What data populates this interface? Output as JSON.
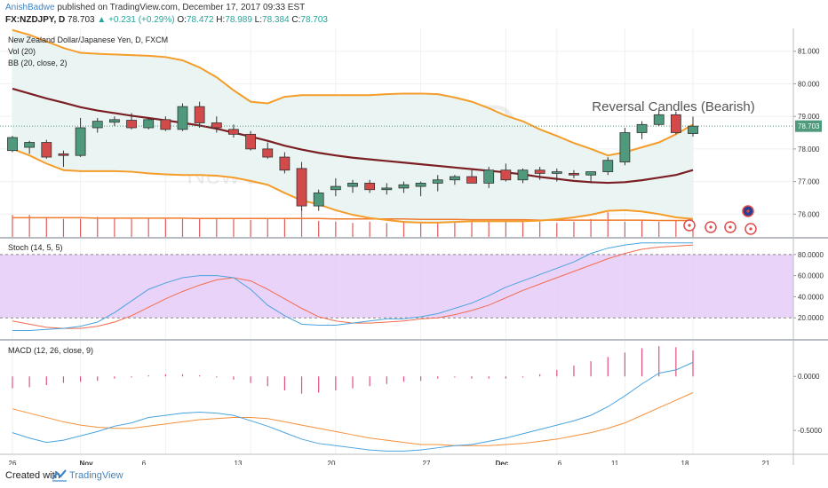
{
  "header": {
    "author": "AnishBadwe",
    "published": "published on TradingView.com, December 17, 2017 09:33 EST",
    "symbol": "FX:NZDJPY, D",
    "last": "78.703",
    "change": "▲ +0.231 (+0.29%)",
    "open_label": "O:",
    "open": "78.472",
    "high_label": "H:",
    "high": "78.989",
    "low_label": "L:",
    "low": "78.384",
    "close_label": "C:",
    "close": "78.703"
  },
  "footer": {
    "created_with": "Created with",
    "brand": "TradingView"
  },
  "colors": {
    "bull": "#4f9a7d",
    "bear": "#d24a4a",
    "bb_band": "#f59d2a",
    "bb_basis": "#7b1f24",
    "bb_fill": "#eaf5f3",
    "stoch_k": "#4aa3df",
    "stoch_d": "#f26c4f",
    "stoch_band": "#e5c8f7",
    "macd_line": "#4aa3df",
    "signal_line": "#f5903a",
    "hist": "#e2507a",
    "vol": "#e05a5a",
    "vol_ma": "#f07b2f"
  },
  "chart_data": [
    {
      "type": "candlestick",
      "title": "New Zealand Dollar/Japanese Yen, D, FXCM",
      "watermark_symbol": "NZDJPY, D",
      "watermark_name": "New Zealand Dollar/Japanese Yen",
      "annotation": "Reversal Candles (Bearish)",
      "indicators": [
        "Vol (20)",
        "BB (20, close, 2)"
      ],
      "ylim": [
        75.3,
        81.7
      ],
      "yticks": [
        "81.000",
        "80.000",
        "79.000",
        "78.000",
        "77.000",
        "76.000"
      ],
      "last_price_label": "78.703",
      "xticks": [
        "26",
        "Nov",
        "6",
        "13",
        "20",
        "27",
        "Dec",
        "6",
        "11",
        "18",
        "21"
      ],
      "candles": [
        {
          "o": 77.95,
          "h": 78.4,
          "l": 77.9,
          "c": 78.35
        },
        {
          "o": 78.05,
          "h": 78.25,
          "l": 77.85,
          "c": 78.2
        },
        {
          "o": 78.2,
          "h": 78.28,
          "l": 77.7,
          "c": 77.75
        },
        {
          "o": 77.85,
          "h": 77.95,
          "l": 77.45,
          "c": 77.8
        },
        {
          "o": 77.8,
          "h": 78.95,
          "l": 77.75,
          "c": 78.65
        },
        {
          "o": 78.65,
          "h": 78.95,
          "l": 78.5,
          "c": 78.85
        },
        {
          "o": 78.82,
          "h": 79.0,
          "l": 78.7,
          "c": 78.9
        },
        {
          "o": 78.88,
          "h": 79.1,
          "l": 78.6,
          "c": 78.65
        },
        {
          "o": 78.65,
          "h": 78.95,
          "l": 78.6,
          "c": 78.9
        },
        {
          "o": 78.9,
          "h": 79.0,
          "l": 78.55,
          "c": 78.6
        },
        {
          "o": 78.6,
          "h": 79.4,
          "l": 78.55,
          "c": 79.3
        },
        {
          "o": 79.3,
          "h": 79.45,
          "l": 78.65,
          "c": 78.8
        },
        {
          "o": 78.8,
          "h": 79.0,
          "l": 78.5,
          "c": 78.65
        },
        {
          "o": 78.6,
          "h": 78.75,
          "l": 78.35,
          "c": 78.45
        },
        {
          "o": 78.45,
          "h": 78.55,
          "l": 77.95,
          "c": 78.0
        },
        {
          "o": 78.0,
          "h": 78.2,
          "l": 77.7,
          "c": 77.75
        },
        {
          "o": 77.75,
          "h": 77.9,
          "l": 77.25,
          "c": 77.35
        },
        {
          "o": 77.4,
          "h": 77.6,
          "l": 76.1,
          "c": 76.25
        },
        {
          "o": 76.25,
          "h": 76.75,
          "l": 76.1,
          "c": 76.65
        },
        {
          "o": 76.75,
          "h": 77.1,
          "l": 76.55,
          "c": 76.85
        },
        {
          "o": 76.85,
          "h": 77.05,
          "l": 76.65,
          "c": 76.95
        },
        {
          "o": 76.95,
          "h": 77.05,
          "l": 76.65,
          "c": 76.75
        },
        {
          "o": 76.75,
          "h": 76.95,
          "l": 76.6,
          "c": 76.8
        },
        {
          "o": 76.8,
          "h": 77.0,
          "l": 76.65,
          "c": 76.9
        },
        {
          "o": 76.85,
          "h": 77.0,
          "l": 76.55,
          "c": 76.95
        },
        {
          "o": 76.95,
          "h": 77.2,
          "l": 76.7,
          "c": 77.05
        },
        {
          "o": 77.05,
          "h": 77.2,
          "l": 76.9,
          "c": 77.15
        },
        {
          "o": 77.15,
          "h": 77.35,
          "l": 76.95,
          "c": 76.95
        },
        {
          "o": 76.95,
          "h": 77.45,
          "l": 76.8,
          "c": 77.35
        },
        {
          "o": 77.35,
          "h": 77.55,
          "l": 77.0,
          "c": 77.05
        },
        {
          "o": 77.05,
          "h": 77.4,
          "l": 76.95,
          "c": 77.35
        },
        {
          "o": 77.35,
          "h": 77.45,
          "l": 77.05,
          "c": 77.25
        },
        {
          "o": 77.25,
          "h": 77.4,
          "l": 77.0,
          "c": 77.3
        },
        {
          "o": 77.25,
          "h": 77.35,
          "l": 77.1,
          "c": 77.2
        },
        {
          "o": 77.2,
          "h": 77.3,
          "l": 76.95,
          "c": 77.3
        },
        {
          "o": 77.3,
          "h": 77.75,
          "l": 77.2,
          "c": 77.65
        },
        {
          "o": 77.6,
          "h": 78.65,
          "l": 77.5,
          "c": 78.5
        },
        {
          "o": 78.5,
          "h": 78.85,
          "l": 78.3,
          "c": 78.75
        },
        {
          "o": 78.75,
          "h": 79.2,
          "l": 78.7,
          "c": 79.05
        },
        {
          "o": 79.05,
          "h": 79.15,
          "l": 78.45,
          "c": 78.5
        },
        {
          "o": 78.47,
          "h": 78.99,
          "l": 78.38,
          "c": 78.7
        }
      ],
      "bb_upper": [
        81.65,
        81.5,
        81.3,
        81.1,
        80.95,
        80.92,
        80.9,
        80.88,
        80.86,
        80.82,
        80.72,
        80.5,
        80.2,
        79.8,
        79.45,
        79.4,
        79.6,
        79.65,
        79.65,
        79.65,
        79.65,
        79.65,
        79.68,
        79.7,
        79.7,
        79.68,
        79.58,
        79.45,
        79.25,
        79.02,
        78.85,
        78.6,
        78.4,
        78.18,
        78.0,
        77.8,
        77.9,
        78.05,
        78.2,
        78.45,
        78.75
      ],
      "bb_basis": [
        79.85,
        79.7,
        79.55,
        79.42,
        79.28,
        79.18,
        79.1,
        79.02,
        78.95,
        78.88,
        78.8,
        78.72,
        78.62,
        78.5,
        78.38,
        78.25,
        78.1,
        77.98,
        77.88,
        77.8,
        77.73,
        77.68,
        77.63,
        77.58,
        77.53,
        77.48,
        77.43,
        77.38,
        77.33,
        77.28,
        77.22,
        77.14,
        77.08,
        77.02,
        76.98,
        76.96,
        76.98,
        77.04,
        77.12,
        77.2,
        77.35
      ],
      "bb_lower": [
        78.0,
        77.8,
        77.55,
        77.35,
        77.32,
        77.32,
        77.32,
        77.3,
        77.25,
        77.22,
        77.2,
        77.2,
        77.18,
        77.12,
        77.02,
        76.9,
        76.65,
        76.42,
        76.3,
        76.12,
        75.98,
        75.88,
        75.82,
        75.76,
        75.74,
        75.74,
        75.76,
        75.78,
        75.78,
        75.78,
        75.78,
        75.8,
        75.84,
        75.9,
        75.98,
        76.1,
        76.12,
        76.08,
        76.0,
        75.9,
        75.85
      ],
      "volume": [
        0.55,
        0.55,
        0.5,
        0.45,
        0.45,
        0.5,
        0.48,
        0.45,
        0.48,
        0.45,
        0.45,
        0.45,
        0.48,
        0.45,
        0.42,
        0.45,
        0.48,
        0.72,
        0.4,
        0.38,
        0.35,
        0.38,
        0.35,
        0.4,
        0.38,
        0.35,
        0.38,
        0.4,
        0.38,
        0.4,
        0.38,
        0.38,
        0.35,
        0.38,
        0.45,
        0.62,
        0.38,
        0.4,
        0.38,
        0.4,
        0.3
      ],
      "volume_ma": [
        0.48,
        0.48,
        0.48,
        0.48,
        0.48,
        0.47,
        0.47,
        0.47,
        0.47,
        0.47,
        0.47,
        0.46,
        0.46,
        0.46,
        0.46,
        0.46,
        0.46,
        0.46,
        0.46,
        0.45,
        0.45,
        0.45,
        0.45,
        0.45,
        0.44,
        0.44,
        0.44,
        0.43,
        0.43,
        0.43,
        0.43,
        0.42,
        0.42,
        0.42,
        0.42,
        0.42,
        0.42,
        0.42,
        0.41,
        0.41,
        0.41
      ]
    },
    {
      "type": "line",
      "title": "Stoch (14, 5, 5)",
      "ylim": [
        0,
        95
      ],
      "yticks": [
        "80.0000",
        "60.0000",
        "40.0000",
        "20.0000"
      ],
      "band": [
        20,
        80
      ],
      "series": [
        {
          "name": "%K",
          "values": [
            8,
            8,
            9,
            10,
            12,
            16,
            25,
            36,
            47,
            53,
            58,
            60,
            60,
            58,
            47,
            32,
            22,
            14,
            13,
            13,
            15,
            17,
            19,
            19,
            21,
            24,
            29,
            34,
            41,
            49,
            55,
            61,
            67,
            73,
            81,
            86,
            89,
            91,
            91,
            91,
            91
          ]
        },
        {
          "name": "%D",
          "values": [
            17,
            14,
            11,
            10,
            10,
            12,
            16,
            22,
            30,
            38,
            45,
            51,
            56,
            58,
            55,
            47,
            38,
            29,
            21,
            17,
            15,
            15,
            16,
            17,
            19,
            20,
            23,
            27,
            32,
            39,
            46,
            52,
            58,
            64,
            70,
            76,
            81,
            85,
            87,
            88,
            89
          ]
        }
      ]
    },
    {
      "type": "bar",
      "title": "MACD (12, 26, close, 9)",
      "ylim": [
        -0.72,
        0.33
      ],
      "yticks": [
        "0.0000",
        "-0.5000"
      ],
      "histogram": [
        -0.11,
        -0.1,
        -0.08,
        -0.06,
        -0.05,
        -0.04,
        -0.02,
        -0.01,
        0.01,
        0.02,
        0.02,
        0.01,
        -0.01,
        -0.03,
        -0.06,
        -0.09,
        -0.13,
        -0.16,
        -0.15,
        -0.13,
        -0.11,
        -0.09,
        -0.07,
        -0.05,
        -0.04,
        -0.02,
        -0.01,
        -0.02,
        -0.02,
        -0.02,
        -0.01,
        0.02,
        0.06,
        0.1,
        0.14,
        0.18,
        0.22,
        0.26,
        0.28,
        0.27,
        0.24
      ],
      "series": [
        {
          "name": "MACD",
          "values": [
            -0.52,
            -0.57,
            -0.61,
            -0.59,
            -0.55,
            -0.51,
            -0.46,
            -0.43,
            -0.38,
            -0.36,
            -0.34,
            -0.33,
            -0.34,
            -0.36,
            -0.41,
            -0.46,
            -0.52,
            -0.58,
            -0.62,
            -0.64,
            -0.66,
            -0.68,
            -0.69,
            -0.69,
            -0.68,
            -0.66,
            -0.64,
            -0.63,
            -0.6,
            -0.57,
            -0.53,
            -0.49,
            -0.45,
            -0.41,
            -0.36,
            -0.28,
            -0.18,
            -0.07,
            0.03,
            0.06,
            0.13
          ]
        },
        {
          "name": "Signal",
          "values": [
            -0.3,
            -0.34,
            -0.38,
            -0.42,
            -0.45,
            -0.47,
            -0.48,
            -0.48,
            -0.46,
            -0.44,
            -0.42,
            -0.4,
            -0.39,
            -0.38,
            -0.38,
            -0.39,
            -0.42,
            -0.45,
            -0.48,
            -0.51,
            -0.54,
            -0.57,
            -0.59,
            -0.61,
            -0.63,
            -0.63,
            -0.64,
            -0.64,
            -0.64,
            -0.63,
            -0.62,
            -0.6,
            -0.58,
            -0.55,
            -0.52,
            -0.48,
            -0.43,
            -0.36,
            -0.29,
            -0.22,
            -0.15
          ]
        }
      ]
    }
  ]
}
